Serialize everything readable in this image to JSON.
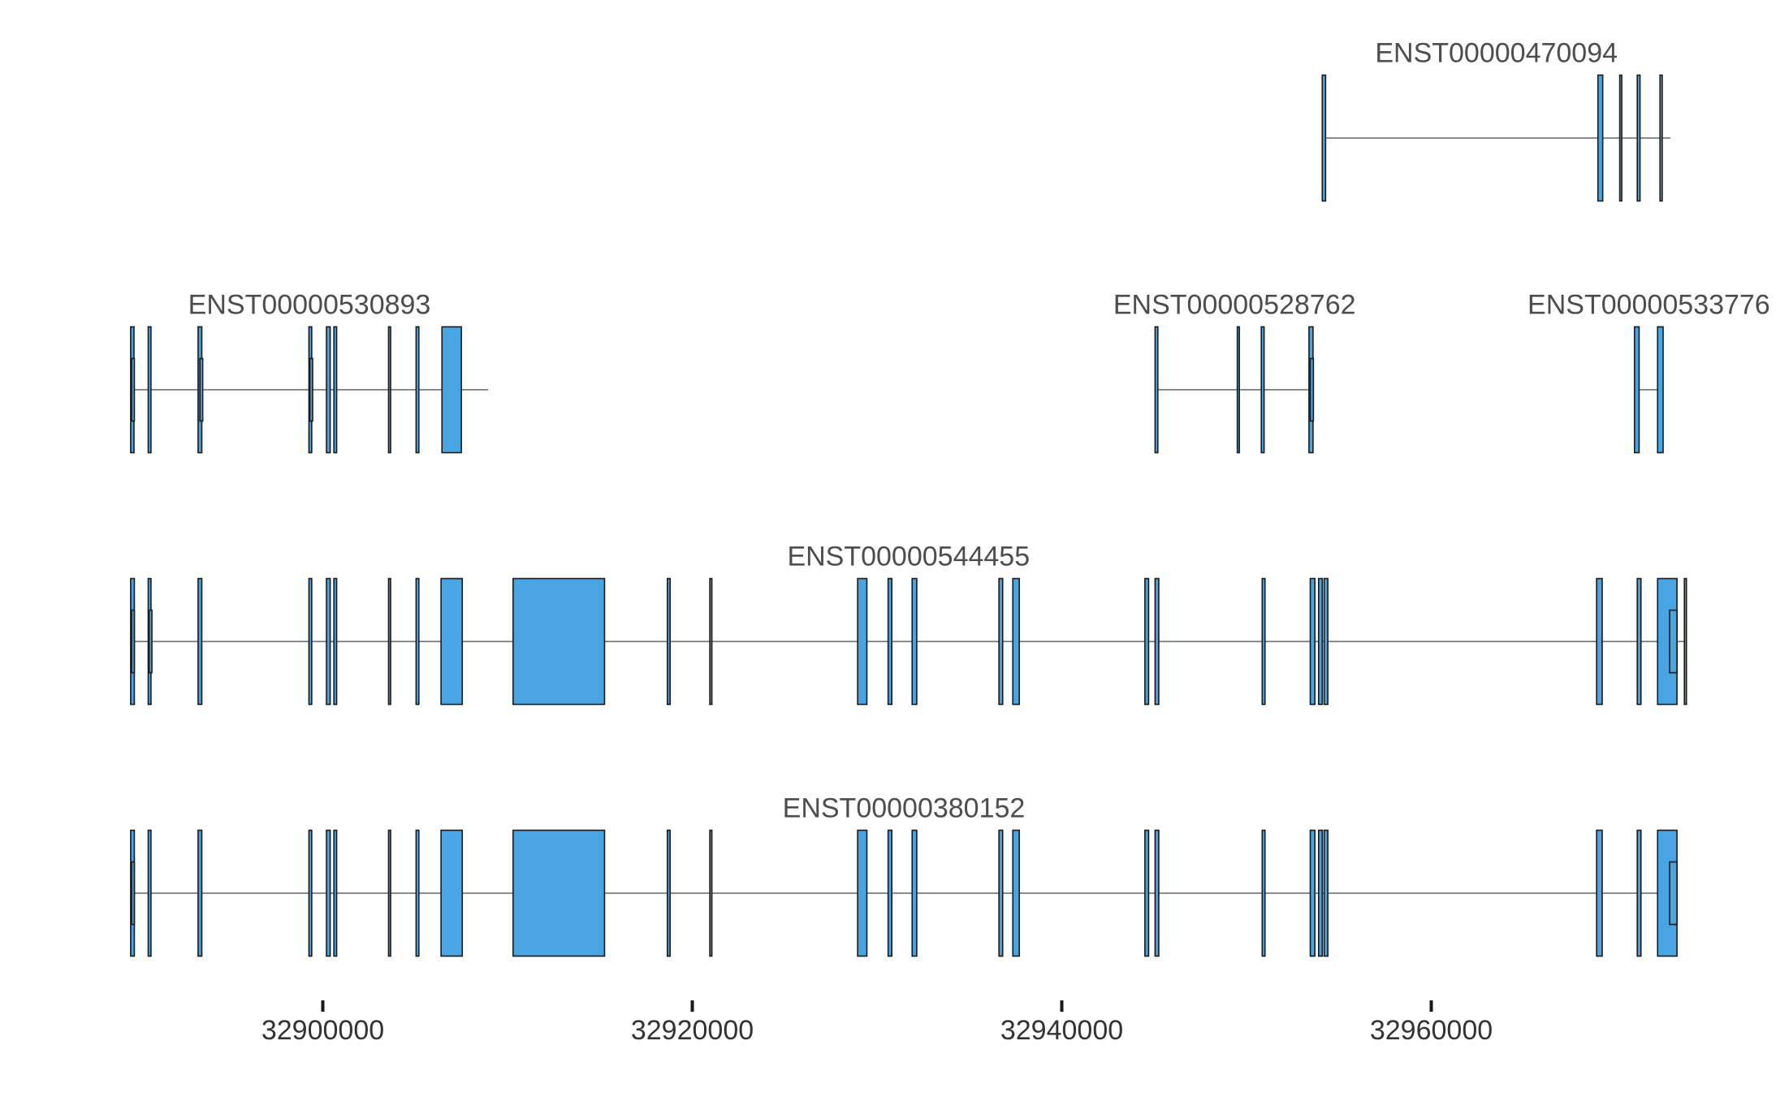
{
  "chart_data": {
    "type": "gene-track",
    "x_axis": {
      "range": [
        32887300,
        32974000
      ],
      "ticks": [
        32900000,
        32920000,
        32940000,
        32960000
      ],
      "tick_labels": [
        "32900000",
        "32920000",
        "32940000",
        "32960000"
      ]
    },
    "colors": {
      "exon": "#48a4e2",
      "intron": "#666666",
      "outline": "#1a1a1a"
    },
    "transcripts": [
      {
        "name": "ENST00000470094",
        "row": 1,
        "start": 32954100,
        "end": 32972950,
        "exons": [
          [
            32954100,
            32954280
          ],
          [
            32969020,
            32969280
          ],
          [
            32970200,
            32970300
          ],
          [
            32971150,
            32971300
          ],
          [
            32972380,
            32972500
          ]
        ],
        "small_exons": []
      },
      {
        "name": "ENST00000530893",
        "row": 2,
        "start": 32889600,
        "end": 32908950,
        "exons": [
          [
            32889600,
            32889780
          ],
          [
            32890550,
            32890700
          ],
          [
            32893250,
            32893450
          ],
          [
            32899250,
            32899400
          ],
          [
            32900200,
            32900400
          ],
          [
            32900600,
            32900750
          ],
          [
            32903560,
            32903640
          ],
          [
            32905050,
            32905200
          ],
          [
            32906450,
            32907500
          ]
        ],
        "small_exons": [
          [
            32889650,
            32889800
          ],
          [
            32893350,
            32893500
          ],
          [
            32899300,
            32899450
          ]
        ]
      },
      {
        "name": "ENST00000528762",
        "row": 2,
        "start": 32945050,
        "end": 32953650,
        "exons": [
          [
            32945050,
            32945200
          ],
          [
            32949500,
            32949600
          ],
          [
            32950800,
            32950950
          ],
          [
            32953380,
            32953600
          ]
        ],
        "small_exons": [
          [
            32953450,
            32953620
          ]
        ]
      },
      {
        "name": "ENST00000533776",
        "row": 2,
        "start": 32971000,
        "end": 32972550,
        "exons": [
          [
            32971000,
            32971250
          ],
          [
            32972250,
            32972550
          ]
        ],
        "small_exons": []
      },
      {
        "name": "ENST00000544455",
        "row": 3,
        "start": 32889600,
        "end": 32973810,
        "exons": [
          [
            32889600,
            32889800
          ],
          [
            32890550,
            32890700
          ],
          [
            32893250,
            32893450
          ],
          [
            32899250,
            32899400
          ],
          [
            32900200,
            32900400
          ],
          [
            32900600,
            32900750
          ],
          [
            32903560,
            32903640
          ],
          [
            32905050,
            32905200
          ],
          [
            32906400,
            32907550
          ],
          [
            32910300,
            32915250
          ],
          [
            32918650,
            32918800
          ],
          [
            32920950,
            32921050
          ],
          [
            32928950,
            32929450
          ],
          [
            32930600,
            32930800
          ],
          [
            32931900,
            32932150
          ],
          [
            32936600,
            32936800
          ],
          [
            32937350,
            32937700
          ],
          [
            32944500,
            32944700
          ],
          [
            32945050,
            32945250
          ],
          [
            32950850,
            32951000
          ],
          [
            32953450,
            32953700
          ],
          [
            32953900,
            32954100
          ],
          [
            32954200,
            32954400
          ],
          [
            32968950,
            32969250
          ],
          [
            32971150,
            32971350
          ],
          [
            32972250,
            32973300
          ],
          [
            32973700,
            32973810
          ]
        ],
        "small_exons": [
          [
            32889650,
            32889800
          ],
          [
            32890600,
            32890750
          ],
          [
            32972900,
            32973300
          ]
        ]
      },
      {
        "name": "ENST00000380152",
        "row": 4,
        "start": 32889600,
        "end": 32973300,
        "exons": [
          [
            32889600,
            32889800
          ],
          [
            32890550,
            32890700
          ],
          [
            32893250,
            32893450
          ],
          [
            32899250,
            32899400
          ],
          [
            32900200,
            32900400
          ],
          [
            32900600,
            32900750
          ],
          [
            32903560,
            32903640
          ],
          [
            32905050,
            32905200
          ],
          [
            32906400,
            32907550
          ],
          [
            32910300,
            32915250
          ],
          [
            32918650,
            32918800
          ],
          [
            32920950,
            32921050
          ],
          [
            32928950,
            32929450
          ],
          [
            32930600,
            32930800
          ],
          [
            32931900,
            32932150
          ],
          [
            32936600,
            32936800
          ],
          [
            32937350,
            32937700
          ],
          [
            32944500,
            32944700
          ],
          [
            32945050,
            32945250
          ],
          [
            32950850,
            32951000
          ],
          [
            32953450,
            32953700
          ],
          [
            32953900,
            32954100
          ],
          [
            32954200,
            32954400
          ],
          [
            32968950,
            32969250
          ],
          [
            32971150,
            32971350
          ],
          [
            32972250,
            32973300
          ]
        ],
        "small_exons": [
          [
            32889650,
            32889800
          ],
          [
            32972900,
            32973300
          ]
        ]
      }
    ]
  }
}
